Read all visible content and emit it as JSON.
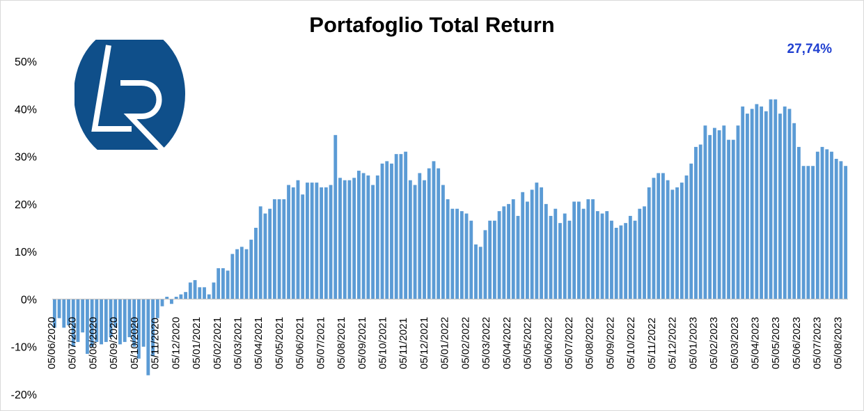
{
  "chart_data": {
    "type": "bar",
    "title": "Portafoglio Total Return",
    "annotation": "27,74%",
    "xlabel": "",
    "ylabel": "",
    "ylim": [
      -0.2,
      0.5
    ],
    "yticks": [
      "-20%",
      "-10%",
      "0%",
      "10%",
      "20%",
      "30%",
      "40%",
      "50%"
    ],
    "grid": false,
    "legend": "none",
    "bar_color": "#5b9bd5",
    "annotation_color": "#1f3fd0",
    "x_tick_labels": [
      "05/06/2020",
      "05/07/2020",
      "05/08/2020",
      "05/09/2020",
      "05/10/2020",
      "05/11/2020",
      "05/12/2020",
      "05/01/2021",
      "05/02/2021",
      "05/03/2021",
      "05/04/2021",
      "05/05/2021",
      "05/06/2021",
      "05/07/2021",
      "05/08/2021",
      "05/09/2021",
      "05/10/2021",
      "05/11/2021",
      "05/12/2021",
      "05/01/2022",
      "05/02/2022",
      "05/03/2022",
      "05/04/2022",
      "05/05/2022",
      "05/06/2022",
      "05/07/2022",
      "05/08/2022",
      "05/09/2022",
      "05/10/2022",
      "05/11/2022",
      "05/12/2022",
      "05/01/2023",
      "05/02/2023",
      "05/03/2023",
      "05/04/2023",
      "05/05/2023",
      "05/06/2023",
      "05/07/2023",
      "05/08/2023"
    ],
    "values": [
      -0.06,
      -0.04,
      -0.06,
      -0.055,
      -0.1,
      -0.09,
      -0.07,
      -0.115,
      -0.1,
      -0.09,
      -0.095,
      -0.09,
      -0.08,
      -0.06,
      -0.095,
      -0.09,
      -0.08,
      -0.1,
      -0.125,
      -0.1,
      -0.16,
      -0.12,
      -0.04,
      -0.015,
      0.005,
      -0.01,
      0.005,
      0.01,
      0.015,
      0.035,
      0.04,
      0.025,
      0.025,
      0.01,
      0.035,
      0.065,
      0.065,
      0.06,
      0.095,
      0.105,
      0.11,
      0.105,
      0.125,
      0.15,
      0.195,
      0.18,
      0.19,
      0.21,
      0.21,
      0.21,
      0.24,
      0.235,
      0.25,
      0.22,
      0.245,
      0.245,
      0.245,
      0.235,
      0.235,
      0.24,
      0.345,
      0.255,
      0.25,
      0.25,
      0.255,
      0.27,
      0.265,
      0.26,
      0.24,
      0.26,
      0.285,
      0.29,
      0.285,
      0.305,
      0.305,
      0.31,
      0.25,
      0.24,
      0.265,
      0.25,
      0.275,
      0.29,
      0.275,
      0.24,
      0.21,
      0.19,
      0.19,
      0.185,
      0.18,
      0.165,
      0.115,
      0.11,
      0.145,
      0.165,
      0.165,
      0.185,
      0.195,
      0.2,
      0.21,
      0.175,
      0.225,
      0.205,
      0.23,
      0.245,
      0.235,
      0.2,
      0.175,
      0.19,
      0.16,
      0.18,
      0.165,
      0.205,
      0.205,
      0.19,
      0.21,
      0.21,
      0.185,
      0.18,
      0.185,
      0.165,
      0.15,
      0.155,
      0.16,
      0.175,
      0.165,
      0.19,
      0.195,
      0.235,
      0.255,
      0.265,
      0.265,
      0.25,
      0.23,
      0.235,
      0.245,
      0.26,
      0.285,
      0.32,
      0.325,
      0.365,
      0.345,
      0.36,
      0.355,
      0.365,
      0.335,
      0.335,
      0.365,
      0.405,
      0.39,
      0.4,
      0.41,
      0.405,
      0.395,
      0.42,
      0.42,
      0.39,
      0.405,
      0.4,
      0.37,
      0.32,
      0.28,
      0.28,
      0.28,
      0.31,
      0.32,
      0.315,
      0.31,
      0.295,
      0.29,
      0.28
    ]
  },
  "logo": {
    "text": "LR",
    "bg_color": "#0f4f8a",
    "fg_color": "#ffffff"
  }
}
